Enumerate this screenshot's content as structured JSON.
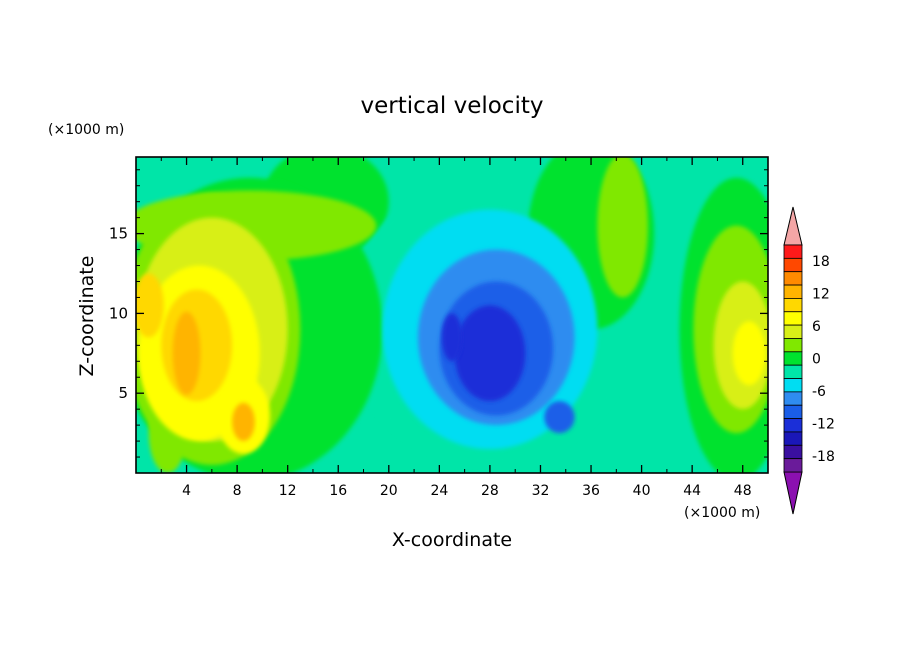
{
  "chart_data": {
    "type": "heatmap",
    "title": "vertical velocity",
    "xlabel": "X-coordinate",
    "ylabel": "Z-coordinate",
    "x_units": "(×1000 m)",
    "y_units": "(×1000 m)",
    "xlim": [
      0,
      50
    ],
    "ylim": [
      0,
      19.8
    ],
    "x_ticks": [
      "4",
      "8",
      "12",
      "16",
      "20",
      "24",
      "28",
      "32",
      "36",
      "40",
      "44",
      "48"
    ],
    "y_ticks": [
      "5",
      "10",
      "15"
    ],
    "colorbar": {
      "tick_labels": [
        "18",
        "12",
        "6",
        "0",
        "-6",
        "-12",
        "-18"
      ],
      "levels": [
        -21,
        -18,
        -15,
        -12,
        -9,
        -6,
        -3,
        0,
        3,
        6,
        9,
        12,
        15,
        18,
        21
      ],
      "colors": [
        "#6a1b9a",
        "#3a0fa0",
        "#1a17b8",
        "#1b2fd8",
        "#1a5ee8",
        "#2f8cf0",
        "#00ddf2",
        "#00e5a8",
        "#00e22e",
        "#80e800",
        "#d8ef18",
        "#ffff00",
        "#ffd800",
        "#ffb400",
        "#ff8a00",
        "#ff4800",
        "#ff1a1a"
      ],
      "under_color": "#8b10b0",
      "over_color": "#f4a6a6"
    },
    "features": [
      {
        "region": "left",
        "x_range": [
          0,
          13
        ],
        "z_range": [
          0,
          17.5
        ],
        "value_range": [
          3,
          16
        ]
      },
      {
        "region": "center",
        "x_range": [
          20,
          36
        ],
        "z_range": [
          1.5,
          16
        ],
        "value_range": [
          -14,
          -3
        ]
      },
      {
        "region": "right",
        "x_range": [
          43,
          50
        ],
        "z_range": [
          0,
          17
        ],
        "value_range": [
          3,
          9
        ]
      },
      {
        "region": "upper-right",
        "x_range": [
          36,
          40
        ],
        "z_range": [
          11,
          19.5
        ],
        "value_range": [
          0,
          3
        ]
      }
    ]
  }
}
